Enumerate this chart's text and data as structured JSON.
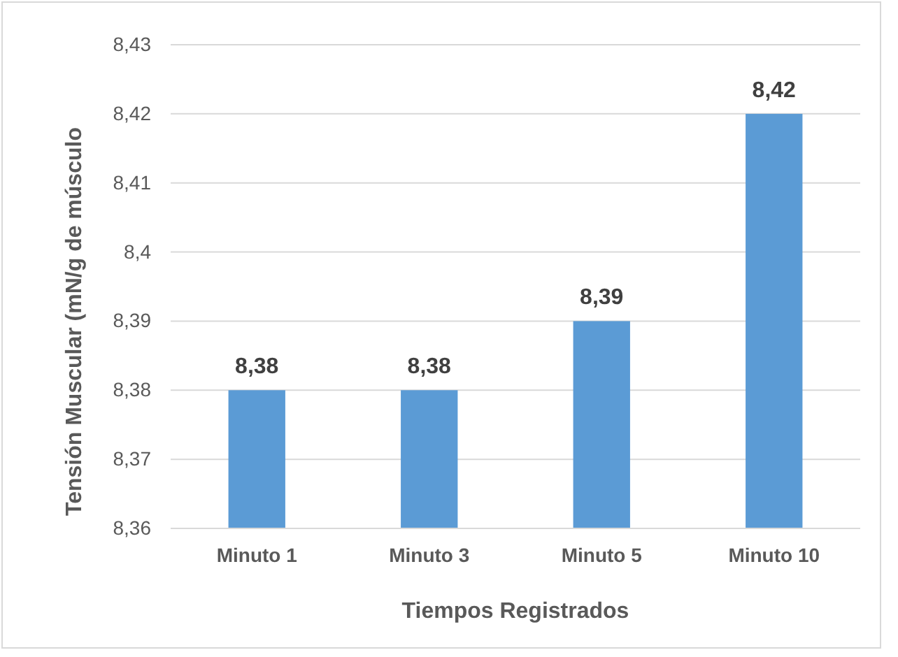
{
  "chart_data": {
    "type": "bar",
    "xlabel": "Tiempos Registrados",
    "ylabel": "Tensión Muscular (mN/g de músculo",
    "categories": [
      "Minuto 1",
      "Minuto 3",
      "Minuto 5",
      "Minuto 10"
    ],
    "values": [
      8.38,
      8.38,
      8.39,
      8.42
    ],
    "color": "#5b9bd5",
    "value_labels": [
      "8,38",
      "8,38",
      "8,39",
      "8,42"
    ],
    "ylim": [
      8.36,
      8.43
    ],
    "yticks": [
      {
        "value": 8.36,
        "label": "8,36"
      },
      {
        "value": 8.37,
        "label": "8,37"
      },
      {
        "value": 8.38,
        "label": "8,38"
      },
      {
        "value": 8.39,
        "label": "8,39"
      },
      {
        "value": 8.4,
        "label": "8,4"
      },
      {
        "value": 8.41,
        "label": "8,41"
      },
      {
        "value": 8.42,
        "label": "8,42"
      },
      {
        "value": 8.43,
        "label": "8,43"
      }
    ],
    "grid": "y"
  }
}
